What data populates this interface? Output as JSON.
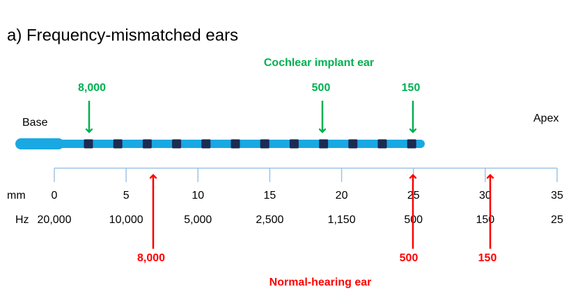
{
  "title": "a) Frequency-mismatched ears",
  "cochlear_implant": {
    "label": "Cochlear implant ear",
    "arrows": [
      "8,000",
      "500",
      "150"
    ]
  },
  "base_label": "Base",
  "apex_label": "Apex",
  "scale": {
    "mm_label": "mm",
    "hz_label": "Hz",
    "mm": [
      0,
      5,
      10,
      15,
      20,
      25,
      30,
      35
    ],
    "hz": [
      "20,000",
      "10,000",
      "5,000",
      "2,500",
      "1,150",
      "500",
      "150",
      "25"
    ]
  },
  "normal_hearing": {
    "label": "Normal-hearing ear",
    "arrows": [
      "8,000",
      "500",
      "150"
    ]
  }
}
